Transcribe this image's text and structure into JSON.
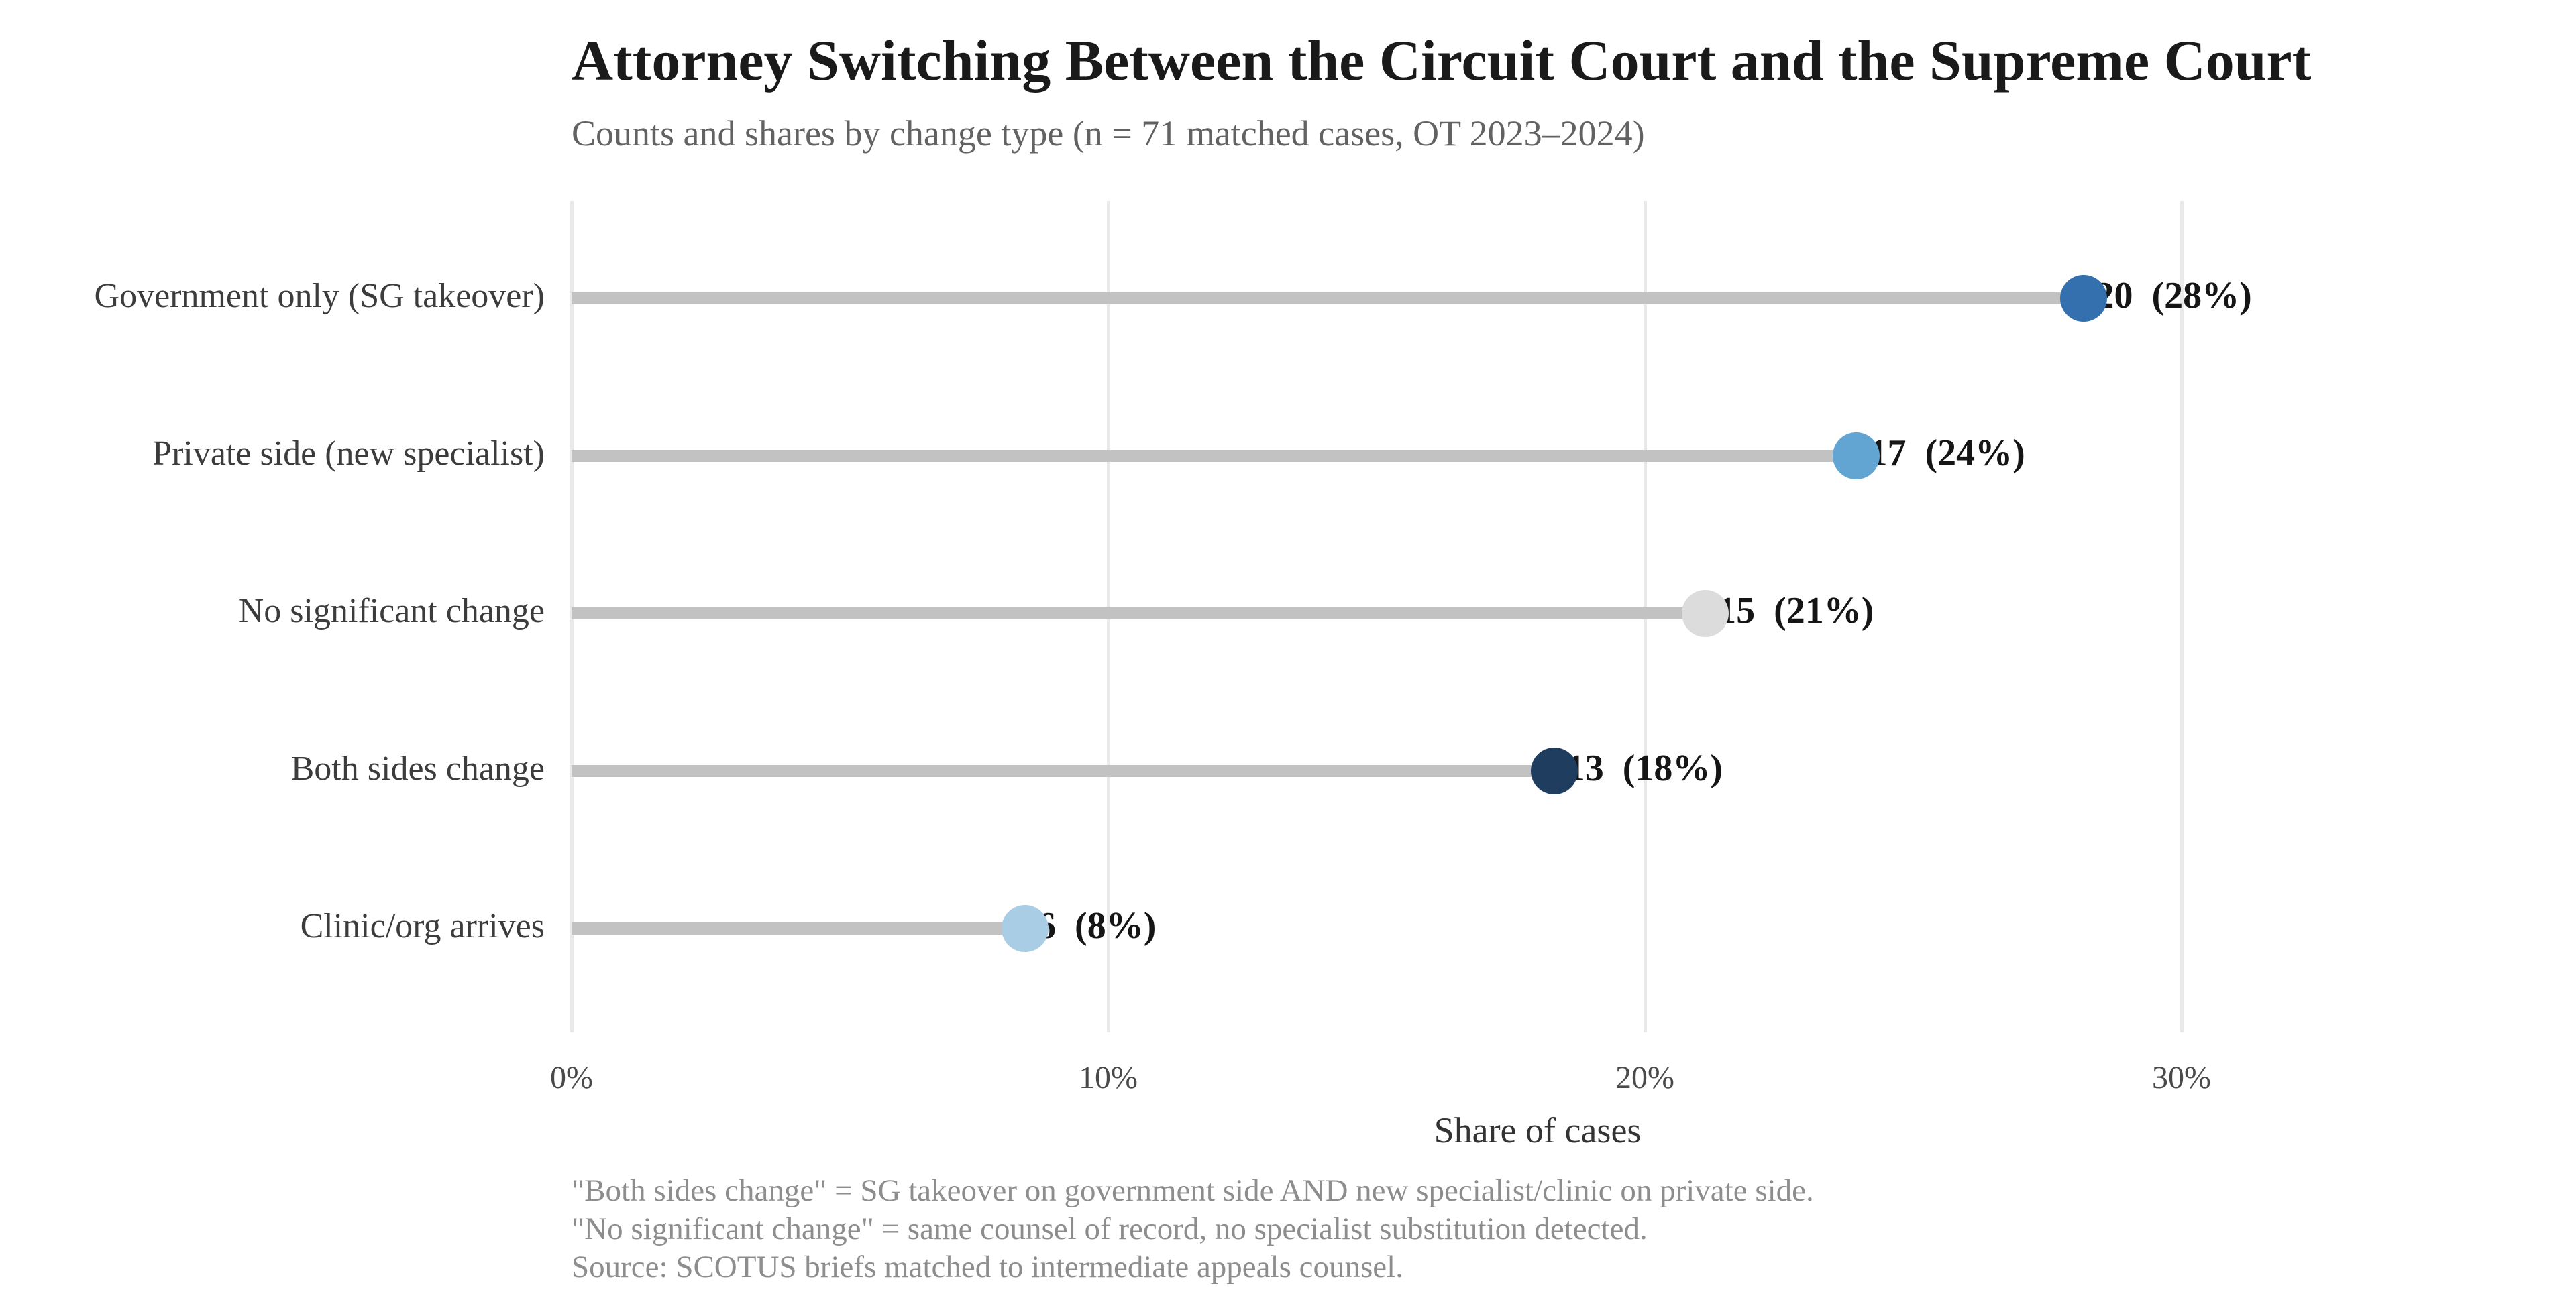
{
  "title": "Attorney Switching Between the Circuit Court and the Supreme Court",
  "subtitle": "Counts and shares by change type (n = 71 matched cases, OT 2023–2024)",
  "x_axis": {
    "label": "Share of cases",
    "ticks": [
      {
        "value": 0,
        "label": "0%"
      },
      {
        "value": 10,
        "label": "10%"
      },
      {
        "value": 20,
        "label": "20%"
      },
      {
        "value": 30,
        "label": "30%"
      }
    ]
  },
  "footnotes": [
    "\"Both sides change\" = SG takeover on government side AND new specialist/clinic on private side.",
    "\"No significant change\" = same counsel of record, no specialist substitution detected.",
    "Source: SCOTUS briefs matched to intermediate appeals counsel."
  ],
  "chart_data": {
    "type": "bar",
    "variant": "horizontal-lollipop",
    "title": "Attorney Switching Between the Circuit Court and the Supreme Court",
    "subtitle": "Counts and shares by change type (n = 71 matched cases, OT 2023–2024)",
    "xlabel": "Share of cases",
    "ylabel": "",
    "xlim": [
      0,
      33
    ],
    "n_total": 71,
    "grid": "vertical",
    "legend": "none",
    "categories": [
      "Government only (SG takeover)",
      "Private side (new specialist)",
      "No significant change",
      "Both sides change",
      "Clinic/org arrives"
    ],
    "series": [
      {
        "name": "count",
        "values": [
          20,
          17,
          15,
          13,
          6
        ]
      },
      {
        "name": "share_pct",
        "values": [
          28,
          24,
          21,
          18,
          8
        ]
      }
    ],
    "point_labels": [
      "20  (28%)",
      "17  (24%)",
      "15  (21%)",
      "13  (18%)",
      "6  (8%)"
    ],
    "dot_colors": [
      "#3470ad",
      "#62a4d2",
      "#dcdcdc",
      "#1e3d5f",
      "#a8cde4"
    ]
  },
  "style": {
    "background": "#ffffff",
    "stem_color": "#c2c2c2",
    "grid_color": "#e9e9e9",
    "title_color": "#1a1a1a",
    "subtitle_color": "#626262",
    "footnote_color": "#8d8d8d"
  }
}
